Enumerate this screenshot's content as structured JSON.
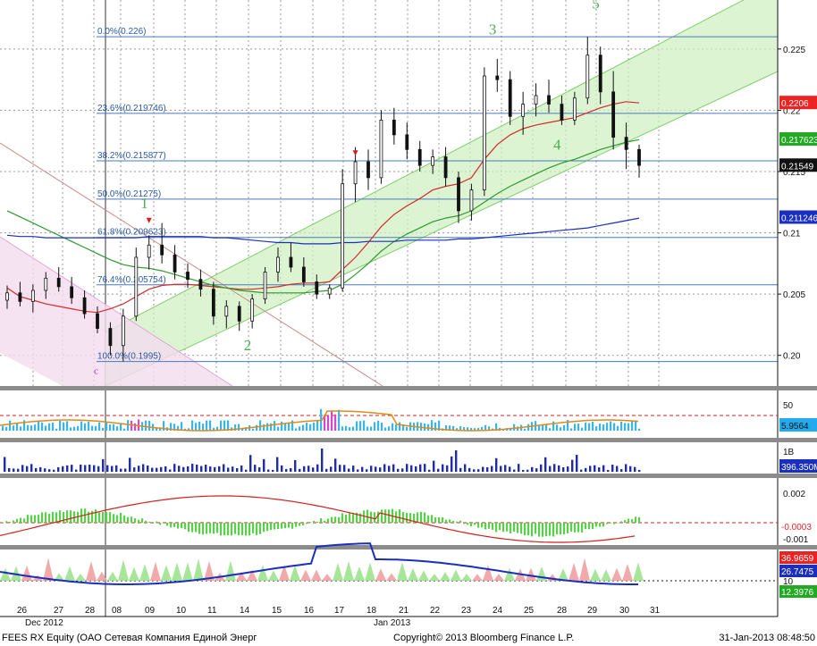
{
  "chart_data": {
    "type": "line",
    "price_axis": {
      "ticks": [
        "0.225",
        "0.22",
        "0.215",
        "0.21",
        "0.205",
        "0.20"
      ]
    },
    "value_labels": [
      {
        "text": "0.2206",
        "color": "#ee2222"
      },
      {
        "text": "0.217623",
        "color": "#22aa22"
      },
      {
        "text": "0.21549",
        "color": "#111111"
      },
      {
        "text": "0.211246",
        "color": "#1a2fbf"
      }
    ],
    "fibonacci_levels": [
      {
        "label": "0.0%(0.226)",
        "value": 0.226
      },
      {
        "label": "23.6%(0.219746)",
        "value": 0.219746
      },
      {
        "label": "38.2%(0.215877)",
        "value": 0.215877
      },
      {
        "label": "50.0%(0.21275)",
        "value": 0.21275
      },
      {
        "label": "61.8%(0.209623)",
        "value": 0.209623
      },
      {
        "label": "76.4%(0.205754)",
        "value": 0.205754
      },
      {
        "label": "100.0%(0.1995)",
        "value": 0.1995
      }
    ],
    "wave_labels": [
      "1",
      "2",
      "3",
      "4",
      "5",
      "c"
    ],
    "x_ticks": [
      "26",
      "27",
      "28",
      "08",
      "09",
      "10",
      "11",
      "14",
      "15",
      "16",
      "17",
      "18",
      "21",
      "22",
      "23",
      "24",
      "25",
      "28",
      "29",
      "30",
      "31"
    ],
    "month_labels": [
      "Dec 2012",
      "Jan 2013"
    ],
    "candles": [
      {
        "o": 0.2045,
        "h": 0.2057,
        "l": 0.2038,
        "c": 0.2051
      },
      {
        "o": 0.2051,
        "h": 0.206,
        "l": 0.204,
        "c": 0.2044
      },
      {
        "o": 0.2044,
        "h": 0.2058,
        "l": 0.2035,
        "c": 0.2053
      },
      {
        "o": 0.2053,
        "h": 0.2068,
        "l": 0.2046,
        "c": 0.2063
      },
      {
        "o": 0.2063,
        "h": 0.2072,
        "l": 0.2052,
        "c": 0.2056
      },
      {
        "o": 0.2056,
        "h": 0.2064,
        "l": 0.2042,
        "c": 0.2047
      },
      {
        "o": 0.2047,
        "h": 0.2053,
        "l": 0.203,
        "c": 0.2034
      },
      {
        "o": 0.2034,
        "h": 0.204,
        "l": 0.2018,
        "c": 0.2022
      },
      {
        "o": 0.2022,
        "h": 0.2027,
        "l": 0.2,
        "c": 0.2008
      },
      {
        "o": 0.2008,
        "h": 0.2038,
        "l": 0.1995,
        "c": 0.2032
      },
      {
        "o": 0.2032,
        "h": 0.2088,
        "l": 0.2028,
        "c": 0.208
      },
      {
        "o": 0.208,
        "h": 0.2098,
        "l": 0.207,
        "c": 0.209
      },
      {
        "o": 0.209,
        "h": 0.2108,
        "l": 0.2075,
        "c": 0.2082
      },
      {
        "o": 0.2082,
        "h": 0.209,
        "l": 0.2062,
        "c": 0.2068
      },
      {
        "o": 0.2068,
        "h": 0.2075,
        "l": 0.2055,
        "c": 0.2062
      },
      {
        "o": 0.2062,
        "h": 0.207,
        "l": 0.2048,
        "c": 0.2054
      },
      {
        "o": 0.2054,
        "h": 0.206,
        "l": 0.2025,
        "c": 0.2032
      },
      {
        "o": 0.2032,
        "h": 0.2045,
        "l": 0.2022,
        "c": 0.204
      },
      {
        "o": 0.204,
        "h": 0.2044,
        "l": 0.202,
        "c": 0.2028
      },
      {
        "o": 0.2028,
        "h": 0.205,
        "l": 0.2022,
        "c": 0.2046
      },
      {
        "o": 0.2046,
        "h": 0.2072,
        "l": 0.2042,
        "c": 0.2068
      },
      {
        "o": 0.2068,
        "h": 0.2088,
        "l": 0.206,
        "c": 0.208
      },
      {
        "o": 0.208,
        "h": 0.2092,
        "l": 0.2068,
        "c": 0.2072
      },
      {
        "o": 0.2072,
        "h": 0.208,
        "l": 0.2056,
        "c": 0.206
      },
      {
        "o": 0.206,
        "h": 0.2066,
        "l": 0.2046,
        "c": 0.205
      },
      {
        "o": 0.205,
        "h": 0.2058,
        "l": 0.2046,
        "c": 0.2055
      },
      {
        "o": 0.2055,
        "h": 0.2152,
        "l": 0.2052,
        "c": 0.214
      },
      {
        "o": 0.214,
        "h": 0.217,
        "l": 0.2125,
        "c": 0.2158
      },
      {
        "o": 0.2158,
        "h": 0.2168,
        "l": 0.2135,
        "c": 0.2145
      },
      {
        "o": 0.2145,
        "h": 0.22,
        "l": 0.214,
        "c": 0.2192
      },
      {
        "o": 0.2192,
        "h": 0.2202,
        "l": 0.2172,
        "c": 0.218
      },
      {
        "o": 0.218,
        "h": 0.219,
        "l": 0.216,
        "c": 0.2168
      },
      {
        "o": 0.2168,
        "h": 0.2175,
        "l": 0.215,
        "c": 0.2155
      },
      {
        "o": 0.2155,
        "h": 0.2168,
        "l": 0.2148,
        "c": 0.2162
      },
      {
        "o": 0.2162,
        "h": 0.217,
        "l": 0.2138,
        "c": 0.2145
      },
      {
        "o": 0.2145,
        "h": 0.215,
        "l": 0.2108,
        "c": 0.2118
      },
      {
        "o": 0.2118,
        "h": 0.214,
        "l": 0.211,
        "c": 0.2135
      },
      {
        "o": 0.2135,
        "h": 0.2235,
        "l": 0.213,
        "c": 0.2228
      },
      {
        "o": 0.2228,
        "h": 0.2242,
        "l": 0.2215,
        "c": 0.2225
      },
      {
        "o": 0.2225,
        "h": 0.2232,
        "l": 0.2188,
        "c": 0.2195
      },
      {
        "o": 0.2195,
        "h": 0.2215,
        "l": 0.218,
        "c": 0.2205
      },
      {
        "o": 0.2205,
        "h": 0.2222,
        "l": 0.2195,
        "c": 0.2212
      },
      {
        "o": 0.2212,
        "h": 0.2225,
        "l": 0.2198,
        "c": 0.2205
      },
      {
        "o": 0.2205,
        "h": 0.2212,
        "l": 0.2188,
        "c": 0.2192
      },
      {
        "o": 0.2192,
        "h": 0.2215,
        "l": 0.2188,
        "c": 0.221
      },
      {
        "o": 0.221,
        "h": 0.226,
        "l": 0.2205,
        "c": 0.2245
      },
      {
        "o": 0.2245,
        "h": 0.2252,
        "l": 0.2205,
        "c": 0.2215
      },
      {
        "o": 0.2215,
        "h": 0.2232,
        "l": 0.2168,
        "c": 0.2178
      },
      {
        "o": 0.2178,
        "h": 0.219,
        "l": 0.2152,
        "c": 0.2168
      },
      {
        "o": 0.2168,
        "h": 0.2172,
        "l": 0.2145,
        "c": 0.2155
      }
    ],
    "moving_averages": [
      {
        "color": "#d42a2a",
        "values": [
          0.2055,
          0.2048,
          0.2045,
          0.2042,
          0.204,
          0.2038,
          0.2036,
          0.2035,
          0.2038,
          0.2042,
          0.2048,
          0.2054,
          0.2057,
          0.2058,
          0.2058,
          0.2057,
          0.2056,
          0.2055,
          0.2054,
          0.2054,
          0.2055,
          0.2056,
          0.2058,
          0.2059,
          0.2059,
          0.206,
          0.207,
          0.208,
          0.2092,
          0.2105,
          0.2115,
          0.2122,
          0.2128,
          0.2135,
          0.2138,
          0.214,
          0.2145,
          0.216,
          0.2172,
          0.218,
          0.2185,
          0.2188,
          0.219,
          0.2192,
          0.2194,
          0.2198,
          0.2202,
          0.2205,
          0.2207,
          0.2206
        ]
      },
      {
        "color": "#2e9a2e",
        "values": [
          0.2118,
          0.2113,
          0.2108,
          0.2103,
          0.2098,
          0.2093,
          0.2088,
          0.2083,
          0.2078,
          0.2074,
          0.2072,
          0.2071,
          0.2069,
          0.2066,
          0.2063,
          0.206,
          0.2057,
          0.2055,
          0.2053,
          0.2052,
          0.2051,
          0.2051,
          0.2051,
          0.2051,
          0.2052,
          0.2053,
          0.2058,
          0.2066,
          0.2075,
          0.2085,
          0.2093,
          0.2099,
          0.2104,
          0.2109,
          0.2112,
          0.2114,
          0.2118,
          0.2125,
          0.2132,
          0.2138,
          0.2143,
          0.2148,
          0.2153,
          0.2157,
          0.216,
          0.2164,
          0.2168,
          0.2171,
          0.2174,
          0.2176
        ]
      },
      {
        "color": "#1a2fbf",
        "values": [
          0.2098,
          0.2097,
          0.2097,
          0.2096,
          0.2096,
          0.2096,
          0.2096,
          0.2096,
          0.2096,
          0.2096,
          0.2096,
          0.2097,
          0.2097,
          0.2097,
          0.2097,
          0.2097,
          0.2096,
          0.2096,
          0.2095,
          0.2094,
          0.2093,
          0.2092,
          0.2092,
          0.2091,
          0.2091,
          0.2091,
          0.2092,
          0.2092,
          0.2093,
          0.2093,
          0.2093,
          0.2094,
          0.2094,
          0.2094,
          0.2094,
          0.2095,
          0.2095,
          0.2096,
          0.2097,
          0.2098,
          0.2099,
          0.21,
          0.2101,
          0.2102,
          0.2103,
          0.2104,
          0.2106,
          0.2108,
          0.211,
          0.2112
        ]
      }
    ],
    "panels": [
      {
        "name": "rsi",
        "ticks": [
          "50"
        ],
        "value_label": {
          "text": "5.9564",
          "color": "#22aaee"
        }
      },
      {
        "name": "volume",
        "ticks": [
          "1B"
        ],
        "value_label": {
          "text": "396.350M",
          "color": "#1a2fbf"
        }
      },
      {
        "name": "macd",
        "ticks": [
          "0.002",
          "-0.001"
        ],
        "value_labels": [
          {
            "text": "-0.0003",
            "color": "#ee2222"
          }
        ]
      },
      {
        "name": "dmi",
        "ticks": [
          "10"
        ],
        "value_labels": [
          {
            "text": "36.9659",
            "color": "#ee2222"
          },
          {
            "text": "26.7475",
            "color": "#1a2fbf"
          },
          {
            "text": "12.3976",
            "color": "#22aa22"
          }
        ]
      }
    ]
  },
  "footer": {
    "left": "FEES RX Equity (OAO Сетевая Компания Единой Энерг",
    "center": "Copyright© 2013 Bloomberg Finance L.P.",
    "right": "31-Jan-2013 08:48:50"
  }
}
